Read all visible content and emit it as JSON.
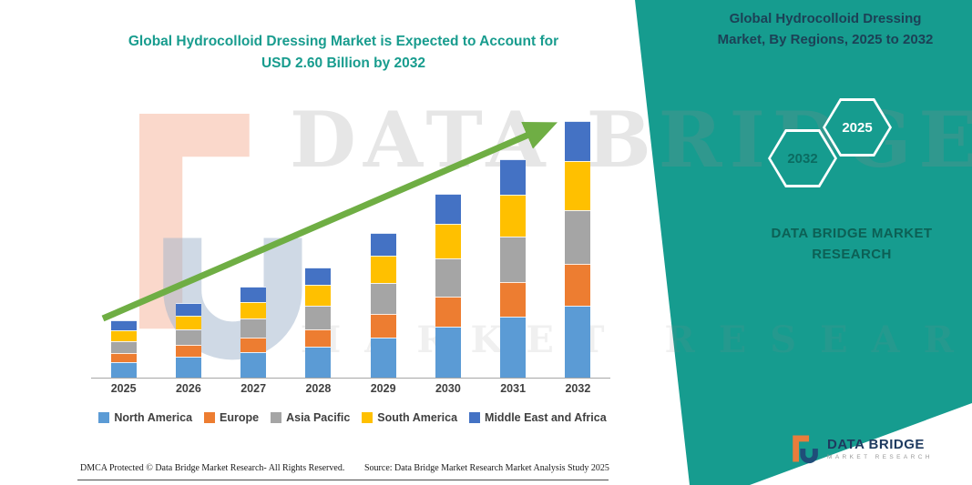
{
  "colors": {
    "teal": "#169C8F",
    "arrow_green": "#6FAE44",
    "title_teal": "#189C8E",
    "navy": "#1C4156"
  },
  "header": {
    "title_line1": "Global Hydrocolloid Dressing Market is Expected to Account for",
    "title_line2": "USD 2.60 Billion by 2032"
  },
  "side_panel": {
    "title_line1": "Global Hydrocolloid Dressing",
    "title_line2": "Market, By Regions, 2025 to 2032",
    "hex_back_label": "2032",
    "hex_front_label": "2025",
    "brand_line1": "DATA BRIDGE MARKET",
    "brand_line2": "RESEARCH"
  },
  "chart_data": {
    "type": "bar",
    "stacked": true,
    "title": "Global Hydrocolloid Dressing Market is Expected to Account for USD 2.60 Billion by 2032",
    "unit": "USD Billion",
    "categories": [
      "2025",
      "2026",
      "2027",
      "2028",
      "2029",
      "2030",
      "2031",
      "2032"
    ],
    "series": [
      {
        "name": "North America",
        "color": "#5B9BD5",
        "values": [
          0.16,
          0.21,
          0.26,
          0.31,
          0.41,
          0.52,
          0.62,
          0.73
        ]
      },
      {
        "name": "Europe",
        "color": "#ED7D31",
        "values": [
          0.09,
          0.12,
          0.15,
          0.18,
          0.24,
          0.3,
          0.35,
          0.42
        ]
      },
      {
        "name": "Asia Pacific",
        "color": "#A5A5A5",
        "values": [
          0.12,
          0.16,
          0.19,
          0.24,
          0.31,
          0.39,
          0.46,
          0.55
        ]
      },
      {
        "name": "South America",
        "color": "#FFC000",
        "values": [
          0.11,
          0.14,
          0.17,
          0.21,
          0.28,
          0.35,
          0.42,
          0.49
        ]
      },
      {
        "name": "Middle East and Africa",
        "color": "#4472C4",
        "values": [
          0.1,
          0.13,
          0.15,
          0.18,
          0.23,
          0.3,
          0.36,
          0.41
        ]
      }
    ],
    "totals": [
      0.58,
      0.76,
      0.92,
      1.12,
      1.47,
      1.86,
      2.21,
      2.6
    ],
    "ylim": [
      0,
      2.8
    ],
    "grid": false,
    "legend_position": "bottom",
    "annotations": [
      "upward trend arrow from 2025 to 2032"
    ]
  },
  "watermark": {
    "line1": "DATA BRIDGE",
    "line2": "MARKET RESEARCH"
  },
  "logo": {
    "brand": "DATA BRIDGE",
    "sub": "MARKET RESEARCH"
  },
  "footer": {
    "left": "DMCA Protected © Data Bridge Market Research-  All Rights Reserved.",
    "right": "Source: Data Bridge Market Research  Market Analysis Study 2025"
  }
}
